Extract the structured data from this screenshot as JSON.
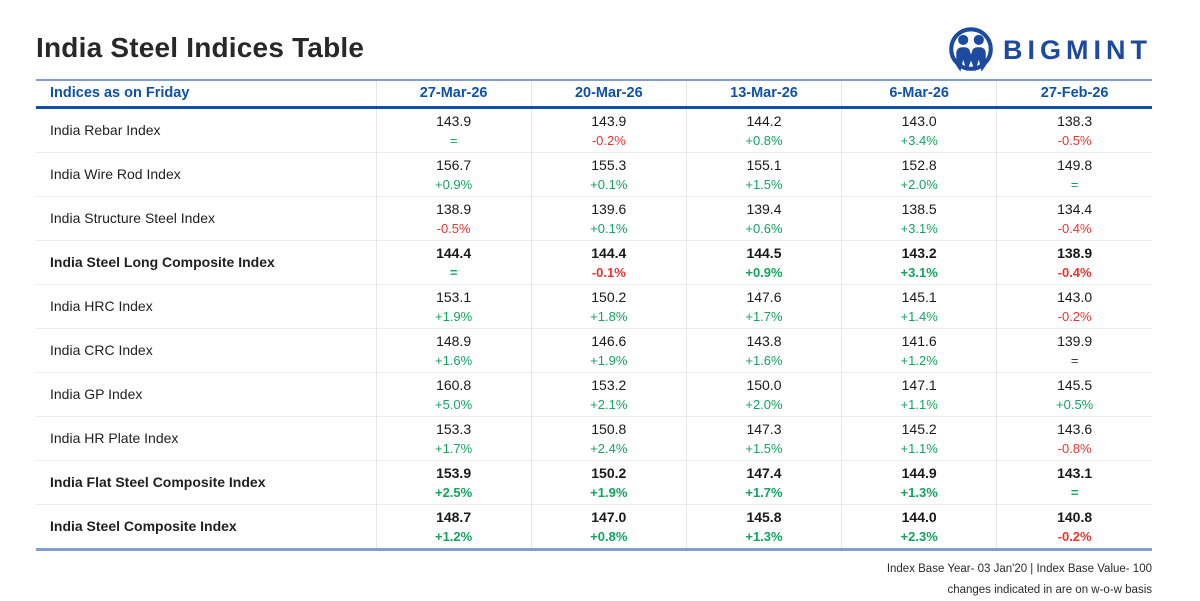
{
  "page": {
    "title": "India Steel Indices Table",
    "logo_text": "BIGMINT"
  },
  "colors": {
    "header_blue": "#0d52a8",
    "positive_green": "#12a55e",
    "negative_red": "#ee342c",
    "neutral_dark": "#3d3d3d",
    "border_steel_blue": "#7f9fce",
    "brand_navy": "#1b4a9e"
  },
  "table": {
    "header_label": "Indices as on Friday",
    "columns": [
      "27-Mar-26",
      "20-Mar-26",
      "13-Mar-26",
      "6-Mar-26",
      "27-Feb-26"
    ],
    "rows": [
      {
        "name": "India Rebar Index",
        "bold": false,
        "cells": [
          {
            "value": "143.9",
            "change": "=",
            "tone": "green"
          },
          {
            "value": "143.9",
            "change": "-0.2%",
            "tone": "red"
          },
          {
            "value": "144.2",
            "change": "+0.8%",
            "tone": "green"
          },
          {
            "value": "143.0",
            "change": "+3.4%",
            "tone": "green"
          },
          {
            "value": "138.3",
            "change": "-0.5%",
            "tone": "red"
          }
        ]
      },
      {
        "name": "India Wire Rod Index",
        "bold": false,
        "cells": [
          {
            "value": "156.7",
            "change": "+0.9%",
            "tone": "green"
          },
          {
            "value": "155.3",
            "change": "+0.1%",
            "tone": "green"
          },
          {
            "value": "155.1",
            "change": "+1.5%",
            "tone": "green"
          },
          {
            "value": "152.8",
            "change": "+2.0%",
            "tone": "green"
          },
          {
            "value": "149.8",
            "change": "=",
            "tone": "green"
          }
        ]
      },
      {
        "name": "India Structure Steel Index",
        "bold": false,
        "cells": [
          {
            "value": "138.9",
            "change": "-0.5%",
            "tone": "red"
          },
          {
            "value": "139.6",
            "change": "+0.1%",
            "tone": "green"
          },
          {
            "value": "139.4",
            "change": "+0.6%",
            "tone": "green"
          },
          {
            "value": "138.5",
            "change": "+3.1%",
            "tone": "green"
          },
          {
            "value": "134.4",
            "change": "-0.4%",
            "tone": "red"
          }
        ]
      },
      {
        "name": "India Steel Long Composite Index",
        "bold": true,
        "cells": [
          {
            "value": "144.4",
            "change": "=",
            "tone": "green"
          },
          {
            "value": "144.4",
            "change": "-0.1%",
            "tone": "red"
          },
          {
            "value": "144.5",
            "change": "+0.9%",
            "tone": "green"
          },
          {
            "value": "143.2",
            "change": "+3.1%",
            "tone": "green"
          },
          {
            "value": "138.9",
            "change": "-0.4%",
            "tone": "red"
          }
        ]
      },
      {
        "name": "India HRC Index",
        "bold": false,
        "cells": [
          {
            "value": "153.1",
            "change": "+1.9%",
            "tone": "green"
          },
          {
            "value": "150.2",
            "change": "+1.8%",
            "tone": "green"
          },
          {
            "value": "147.6",
            "change": "+1.7%",
            "tone": "green"
          },
          {
            "value": "145.1",
            "change": "+1.4%",
            "tone": "green"
          },
          {
            "value": "143.0",
            "change": "-0.2%",
            "tone": "red"
          }
        ]
      },
      {
        "name": "India CRC Index",
        "bold": false,
        "cells": [
          {
            "value": "148.9",
            "change": "+1.6%",
            "tone": "green"
          },
          {
            "value": "146.6",
            "change": "+1.9%",
            "tone": "green"
          },
          {
            "value": "143.8",
            "change": "+1.6%",
            "tone": "green"
          },
          {
            "value": "141.6",
            "change": "+1.2%",
            "tone": "green"
          },
          {
            "value": "139.9",
            "change": "=",
            "tone": "dark"
          }
        ]
      },
      {
        "name": "India GP Index",
        "bold": false,
        "cells": [
          {
            "value": "160.8",
            "change": "+5.0%",
            "tone": "green"
          },
          {
            "value": "153.2",
            "change": "+2.1%",
            "tone": "green"
          },
          {
            "value": "150.0",
            "change": "+2.0%",
            "tone": "green"
          },
          {
            "value": "147.1",
            "change": "+1.1%",
            "tone": "green"
          },
          {
            "value": "145.5",
            "change": "+0.5%",
            "tone": "green"
          }
        ]
      },
      {
        "name": "India HR Plate Index",
        "bold": false,
        "cells": [
          {
            "value": "153.3",
            "change": "+1.7%",
            "tone": "green"
          },
          {
            "value": "150.8",
            "change": "+2.4%",
            "tone": "green"
          },
          {
            "value": "147.3",
            "change": "+1.5%",
            "tone": "green"
          },
          {
            "value": "145.2",
            "change": "+1.1%",
            "tone": "green"
          },
          {
            "value": "143.6",
            "change": "-0.8%",
            "tone": "red"
          }
        ]
      },
      {
        "name": "India Flat Steel Composite Index",
        "bold": true,
        "cells": [
          {
            "value": "153.9",
            "change": "+2.5%",
            "tone": "green"
          },
          {
            "value": "150.2",
            "change": "+1.9%",
            "tone": "green"
          },
          {
            "value": "147.4",
            "change": "+1.7%",
            "tone": "green"
          },
          {
            "value": "144.9",
            "change": "+1.3%",
            "tone": "green"
          },
          {
            "value": "143.1",
            "change": "=",
            "tone": "green"
          }
        ]
      },
      {
        "name": "India Steel Composite Index",
        "bold": true,
        "cells": [
          {
            "value": "148.7",
            "change": "+1.2%",
            "tone": "green"
          },
          {
            "value": "147.0",
            "change": "+0.8%",
            "tone": "green"
          },
          {
            "value": "145.8",
            "change": "+1.3%",
            "tone": "green"
          },
          {
            "value": "144.0",
            "change": "+2.3%",
            "tone": "green"
          },
          {
            "value": "140.8",
            "change": "-0.2%",
            "tone": "red"
          }
        ]
      }
    ]
  },
  "footer": {
    "line1": "Index Base Year- 03 Jan'20 | Index Base Value- 100",
    "line2": "changes indicated in are on w-o-w basis"
  },
  "chart_data": {
    "type": "table",
    "title": "India Steel Indices Table",
    "columns": [
      "27-Mar-26",
      "20-Mar-26",
      "13-Mar-26",
      "6-Mar-26",
      "27-Feb-26"
    ],
    "rows": [
      {
        "name": "India Rebar Index",
        "values": [
          143.9,
          143.9,
          144.2,
          143.0,
          138.3
        ],
        "changes": [
          "=",
          "-0.2%",
          "+0.8%",
          "+3.4%",
          "-0.5%"
        ]
      },
      {
        "name": "India Wire Rod Index",
        "values": [
          156.7,
          155.3,
          155.1,
          152.8,
          149.8
        ],
        "changes": [
          "+0.9%",
          "+0.1%",
          "+1.5%",
          "+2.0%",
          "="
        ]
      },
      {
        "name": "India Structure Steel Index",
        "values": [
          138.9,
          139.6,
          139.4,
          138.5,
          134.4
        ],
        "changes": [
          "-0.5%",
          "+0.1%",
          "+0.6%",
          "+3.1%",
          "-0.4%"
        ]
      },
      {
        "name": "India Steel Long Composite Index",
        "values": [
          144.4,
          144.4,
          144.5,
          143.2,
          138.9
        ],
        "changes": [
          "=",
          "-0.1%",
          "+0.9%",
          "+3.1%",
          "-0.4%"
        ]
      },
      {
        "name": "India HRC Index",
        "values": [
          153.1,
          150.2,
          147.6,
          145.1,
          143.0
        ],
        "changes": [
          "+1.9%",
          "+1.8%",
          "+1.7%",
          "+1.4%",
          "-0.2%"
        ]
      },
      {
        "name": "India CRC Index",
        "values": [
          148.9,
          146.6,
          143.8,
          141.6,
          139.9
        ],
        "changes": [
          "+1.6%",
          "+1.9%",
          "+1.6%",
          "+1.2%",
          "="
        ]
      },
      {
        "name": "India GP Index",
        "values": [
          160.8,
          153.2,
          150.0,
          147.1,
          145.5
        ],
        "changes": [
          "+5.0%",
          "+2.1%",
          "+2.0%",
          "+1.1%",
          "+0.5%"
        ]
      },
      {
        "name": "India HR Plate Index",
        "values": [
          153.3,
          150.8,
          147.3,
          145.2,
          143.6
        ],
        "changes": [
          "+1.7%",
          "+2.4%",
          "+1.5%",
          "+1.1%",
          "-0.8%"
        ]
      },
      {
        "name": "India Flat Steel Composite Index",
        "values": [
          153.9,
          150.2,
          147.4,
          144.9,
          143.1
        ],
        "changes": [
          "+2.5%",
          "+1.9%",
          "+1.7%",
          "+1.3%",
          "="
        ]
      },
      {
        "name": "India Steel Composite Index",
        "values": [
          148.7,
          147.0,
          145.8,
          144.0,
          140.8
        ],
        "changes": [
          "+1.2%",
          "+0.8%",
          "+1.3%",
          "+2.3%",
          "-0.2%"
        ]
      }
    ],
    "notes": [
      "Index Base Year- 03 Jan'20 | Index Base Value- 100",
      "changes indicated in are on w-o-w basis"
    ]
  }
}
